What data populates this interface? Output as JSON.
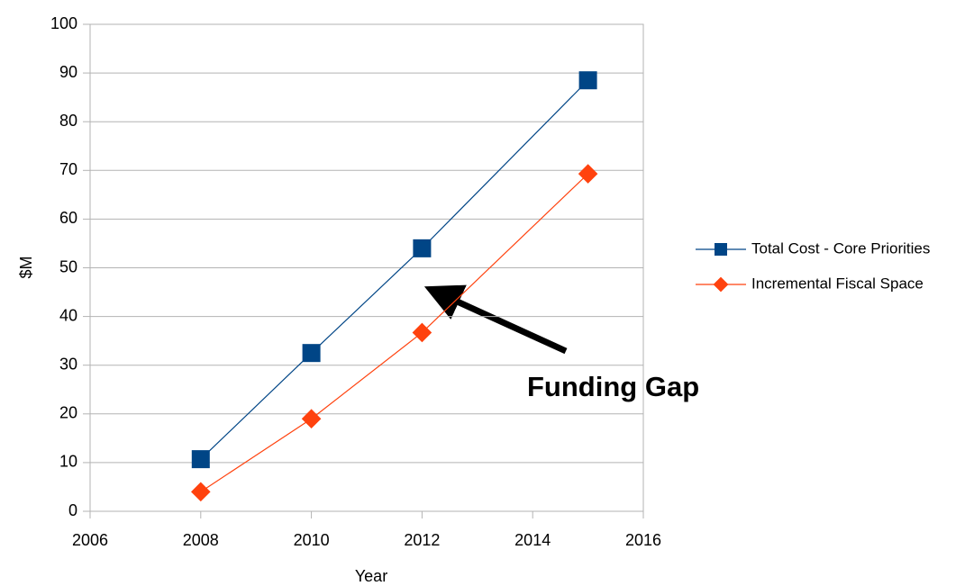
{
  "chart_data": {
    "type": "line",
    "xlabel": "Year",
    "ylabel": "$M",
    "series": [
      {
        "name": "Total Cost - Core Priorities",
        "color": "#004586",
        "marker": "square",
        "x": [
          2008,
          2010,
          2012,
          2015
        ],
        "values": [
          10.7,
          32.5,
          54,
          88.5
        ]
      },
      {
        "name": "Incremental Fiscal Space",
        "color": "#ff420e",
        "marker": "diamond",
        "x": [
          2008,
          2010,
          2012,
          2015
        ],
        "values": [
          4,
          19,
          36.7,
          69.3
        ]
      }
    ],
    "xlim": [
      2006,
      2016
    ],
    "xticks": [
      2006,
      2008,
      2010,
      2012,
      2014,
      2016
    ],
    "ylim": [
      0,
      100
    ],
    "yticks": [
      0,
      10,
      20,
      30,
      40,
      50,
      60,
      70,
      80,
      90,
      100
    ],
    "grid": true,
    "legend": "right",
    "annotation": "Funding Gap"
  }
}
